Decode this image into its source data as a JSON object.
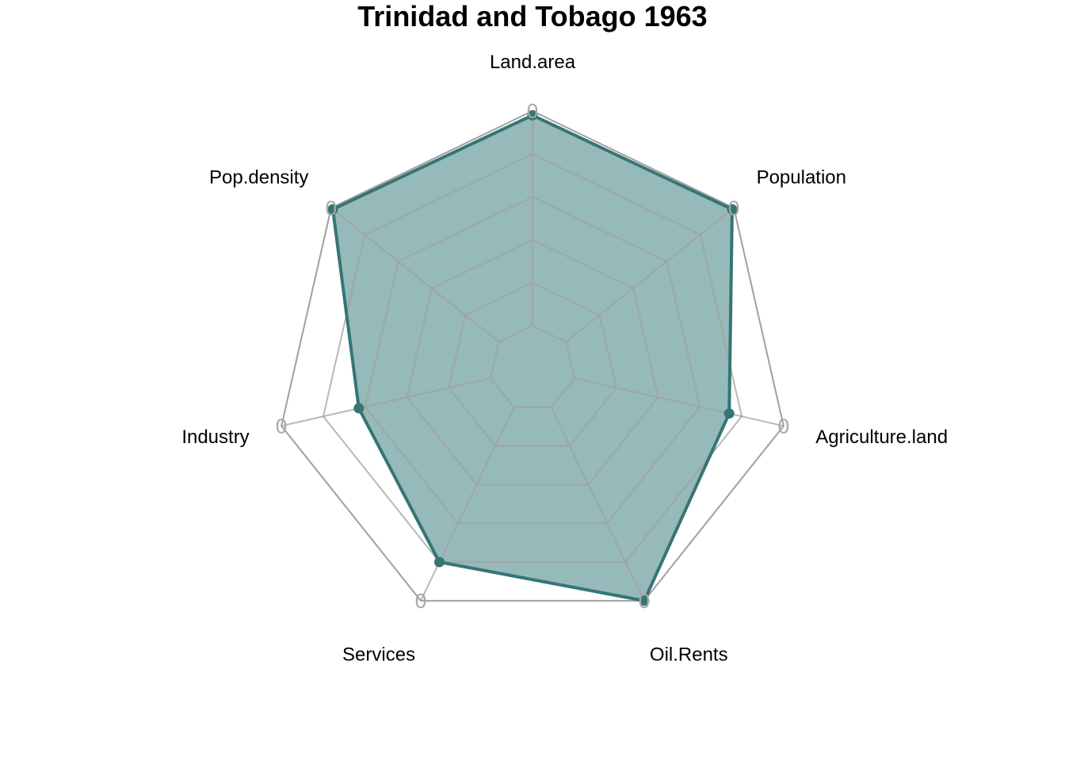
{
  "chart_data": {
    "type": "radar",
    "title": "Trinidad and Tobago 1963",
    "axes": [
      "Land.area",
      "Population",
      "Agriculture.land",
      "Oil.Rents",
      "Services",
      "Industry",
      "Pop.density"
    ],
    "range": [
      0,
      1
    ],
    "grid_levels": 5,
    "axis_value_label": "0",
    "series": [
      {
        "values": [
          0.98,
          0.99,
          0.74,
          1.0,
          0.8,
          0.63,
          0.99
        ]
      }
    ],
    "colors": {
      "series_line": "#357575",
      "series_fill": "#7FA9AB",
      "grid": "#a0a0a0"
    }
  }
}
